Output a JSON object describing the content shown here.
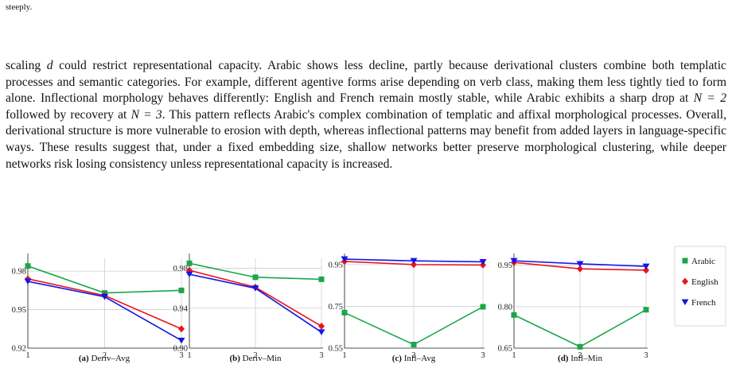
{
  "page": {
    "top_fragment": "steeply.",
    "paragraph": {
      "p1": "scaling ",
      "var_d": "d",
      "p2": " could restrict representational capacity. Arabic shows less decline, partly because derivational clusters combine both templatic processes and semantic categories. For example, different agentive forms arise depending on verb class, making them less tightly tied to form alone. Inflectional morphology behaves differently: English and French remain mostly stable, while Arabic exhibits a sharp drop at ",
      "eq1": "N = 2",
      "p3": " followed by recovery at ",
      "eq2": "N = 3",
      "p4": ". This pattern reflects Arabic's complex combination of templatic and affixal morphological processes. Overall, derivational structure is more vulnerable to erosion with depth, whereas inflectional patterns may benefit from added layers in language-specific ways. These results suggest that, under a fixed embedding size, shallow networks better preserve morphological clustering, while deeper networks risk losing consistency unless representational capacity is increased."
    }
  },
  "legend": [
    {
      "name": "Arabic",
      "color": "#1aa64a",
      "marker": "square"
    },
    {
      "name": "English",
      "color": "#e8141c",
      "marker": "diamond"
    },
    {
      "name": "French",
      "color": "#1515e6",
      "marker": "triangle-down"
    }
  ],
  "chart_data": [
    {
      "type": "line",
      "caption_label": "(a)",
      "caption_text": "Deriv–Avg",
      "x": [
        1,
        2,
        3
      ],
      "x_ticks": [
        "1",
        "2",
        "3"
      ],
      "y_ticks": [
        "0.92",
        "0.95",
        "0.98"
      ],
      "y_tick_values": [
        0.92,
        0.95,
        0.98
      ],
      "ylim": [
        0.92,
        0.99
      ],
      "series": [
        {
          "name": "Arabic",
          "values": [
            0.984,
            0.963,
            0.965
          ]
        },
        {
          "name": "English",
          "values": [
            0.974,
            0.961,
            0.935
          ]
        },
        {
          "name": "French",
          "values": [
            0.972,
            0.96,
            0.926
          ]
        }
      ]
    },
    {
      "type": "line",
      "caption_label": "(b)",
      "caption_text": "Deriv–Min",
      "x": [
        1,
        2,
        3
      ],
      "x_ticks": [
        "1",
        "2",
        "3"
      ],
      "y_ticks": [
        "0.90",
        "0.94",
        "0.98"
      ],
      "y_tick_values": [
        0.9,
        0.94,
        0.98
      ],
      "ylim": [
        0.9,
        0.99
      ],
      "series": [
        {
          "name": "Arabic",
          "values": [
            0.985,
            0.971,
            0.969
          ]
        },
        {
          "name": "English",
          "values": [
            0.978,
            0.961,
            0.922
          ]
        },
        {
          "name": "French",
          "values": [
            0.974,
            0.96,
            0.916
          ]
        }
      ]
    },
    {
      "type": "line",
      "caption_label": "(c)",
      "caption_text": "Infl–Avg",
      "x": [
        1,
        2,
        3
      ],
      "x_ticks": [
        "1",
        "2",
        "3"
      ],
      "y_ticks": [
        "0.55",
        "0.75",
        "0.95"
      ],
      "y_tick_values": [
        0.55,
        0.75,
        0.95
      ],
      "ylim": [
        0.55,
        0.98
      ],
      "series": [
        {
          "name": "Arabic",
          "values": [
            0.72,
            0.567,
            0.748
          ]
        },
        {
          "name": "English",
          "values": [
            0.965,
            0.95,
            0.948
          ]
        },
        {
          "name": "French",
          "values": [
            0.976,
            0.968,
            0.963
          ]
        }
      ]
    },
    {
      "type": "line",
      "caption_label": "(d)",
      "caption_text": "Infl–Min",
      "x": [
        1,
        2,
        3
      ],
      "x_ticks": [
        "1",
        "2",
        "3"
      ],
      "y_ticks": [
        "0.65",
        "0.80",
        "0.95"
      ],
      "y_tick_values": [
        0.65,
        0.8,
        0.95
      ],
      "ylim": [
        0.65,
        0.975
      ],
      "series": [
        {
          "name": "Arabic",
          "values": [
            0.77,
            0.655,
            0.789
          ]
        },
        {
          "name": "English",
          "values": [
            0.96,
            0.937,
            0.932
          ]
        },
        {
          "name": "French",
          "values": [
            0.966,
            0.955,
            0.946
          ]
        }
      ]
    }
  ]
}
